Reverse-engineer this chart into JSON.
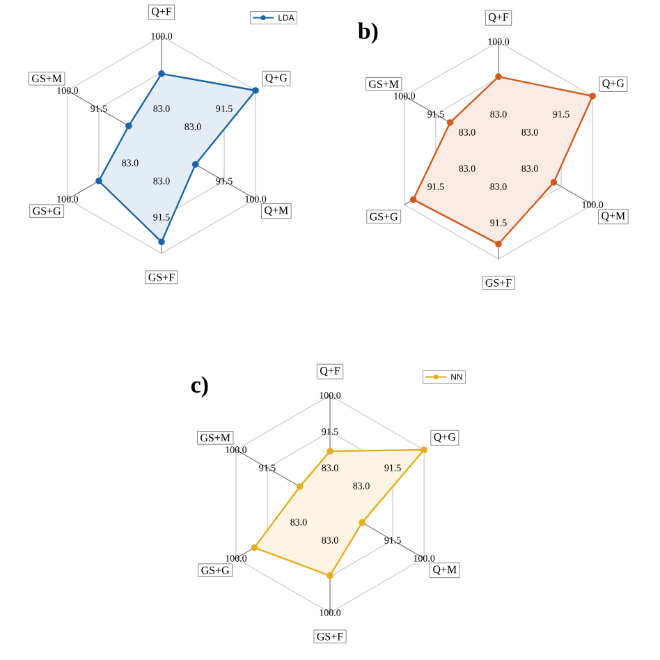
{
  "chart_data": [
    {
      "type": "radar",
      "categories": [
        "Q+F",
        "Q+G",
        "Q+M",
        "GS+F",
        "GS+G",
        "GS+M"
      ],
      "series": [
        {
          "name": "LDA",
          "color": "#1b64a8",
          "values": [
            91.2,
            100,
            83.7,
            97.3,
            91.5,
            83.4
          ]
        }
      ],
      "ylim": [
        74.5,
        100
      ],
      "yticks": [
        {
          "value": 83,
          "label": "83.0"
        },
        {
          "value": 91.5,
          "label": "91.5"
        },
        {
          "value": 100,
          "label": "100.0"
        }
      ],
      "grid": true,
      "legend": "top right",
      "marker": "circle"
    },
    {
      "type": "radar",
      "title": "b)",
      "categories": [
        "Q+F",
        "Q+G",
        "Q+M",
        "GS+F",
        "GS+G",
        "GS+M"
      ],
      "series": [
        {
          "color": "#d35a1e",
          "values": [
            91.8,
            100,
            89.5,
            96.5,
            97.6,
            87.6
          ]
        }
      ],
      "ylim": [
        74.5,
        100
      ],
      "yticks": [
        {
          "value": 83,
          "label": "83.0"
        },
        {
          "value": 91.5,
          "label": "91.5"
        },
        {
          "value": 100,
          "label": "100.0"
        }
      ],
      "grid": true,
      "marker": "circle"
    },
    {
      "type": "radar",
      "title": "c)",
      "categories": [
        "Q+F",
        "Q+G",
        "Q+M",
        "GS+F",
        "GS+G",
        "GS+M"
      ],
      "series": [
        {
          "name": "NN",
          "color": "#e6ad1f",
          "values": [
            86.9,
            100,
            83.2,
            91.3,
            95.0,
            82.7
          ]
        }
      ],
      "ylim": [
        74.5,
        100
      ],
      "yticks": [
        {
          "value": 83,
          "label": "83.0"
        },
        {
          "value": 91.5,
          "label": "91.5"
        },
        {
          "value": 100,
          "label": "100.0"
        }
      ],
      "grid": true,
      "legend": "top right",
      "marker": "circle"
    }
  ]
}
